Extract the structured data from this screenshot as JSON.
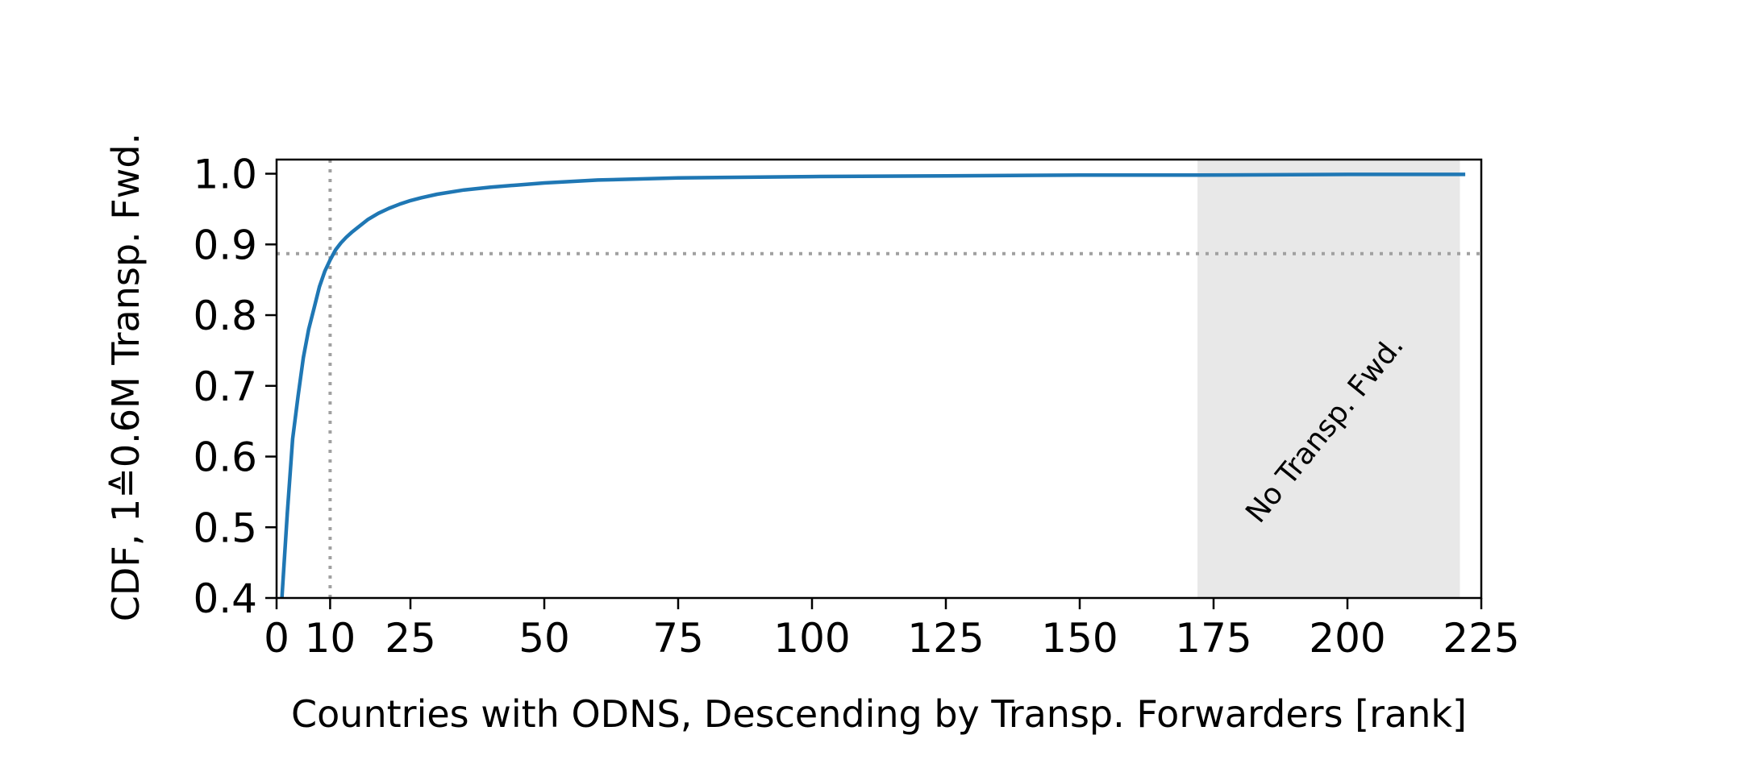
{
  "chart_data": {
    "type": "line",
    "title": "",
    "xlabel": "Countries with ODNS, Descending by Transp. Forwarders [rank]",
    "ylabel": "CDF, 1≙0.6M Transp. Fwd.",
    "xlim": [
      0,
      225
    ],
    "ylim": [
      0.4,
      1.02
    ],
    "xticks": [
      0,
      10,
      25,
      50,
      75,
      100,
      125,
      150,
      175,
      200,
      225
    ],
    "yticks": [
      0.4,
      0.5,
      0.6,
      0.7,
      0.8,
      0.9,
      1.0
    ],
    "xtick_labels": [
      "0",
      "10",
      "25",
      "50",
      "75",
      "100",
      "125",
      "150",
      "175",
      "200",
      "225"
    ],
    "ytick_labels": [
      "0.4",
      "0.5",
      "0.6",
      "0.7",
      "0.8",
      "0.9",
      "1.0"
    ],
    "grid": false,
    "line_color": "#1f77b4",
    "series": [
      {
        "x": [
          1,
          2,
          3,
          4,
          5,
          6,
          7,
          8,
          9,
          10,
          11,
          12,
          13,
          14,
          15,
          17,
          19,
          21,
          23,
          25,
          27,
          30,
          35,
          40,
          45,
          50,
          60,
          75,
          100,
          125,
          150,
          172,
          200,
          222
        ],
        "y": [
          0.4,
          0.52,
          0.625,
          0.685,
          0.74,
          0.78,
          0.81,
          0.84,
          0.862,
          0.878,
          0.892,
          0.902,
          0.91,
          0.917,
          0.923,
          0.935,
          0.944,
          0.951,
          0.957,
          0.962,
          0.966,
          0.971,
          0.977,
          0.981,
          0.984,
          0.987,
          0.991,
          0.994,
          0.996,
          0.997,
          0.998,
          0.998,
          0.999,
          0.999
        ]
      }
    ],
    "reference_lines": {
      "x": 10,
      "y": 0.887,
      "color": "#a0a0a0",
      "style": "dotted"
    },
    "shaded_region": {
      "x_start": 172,
      "x_end": 221,
      "color": "#e8e8e8",
      "label": "No Transp. Fwd.",
      "label_color": "#6e6e6e"
    }
  }
}
